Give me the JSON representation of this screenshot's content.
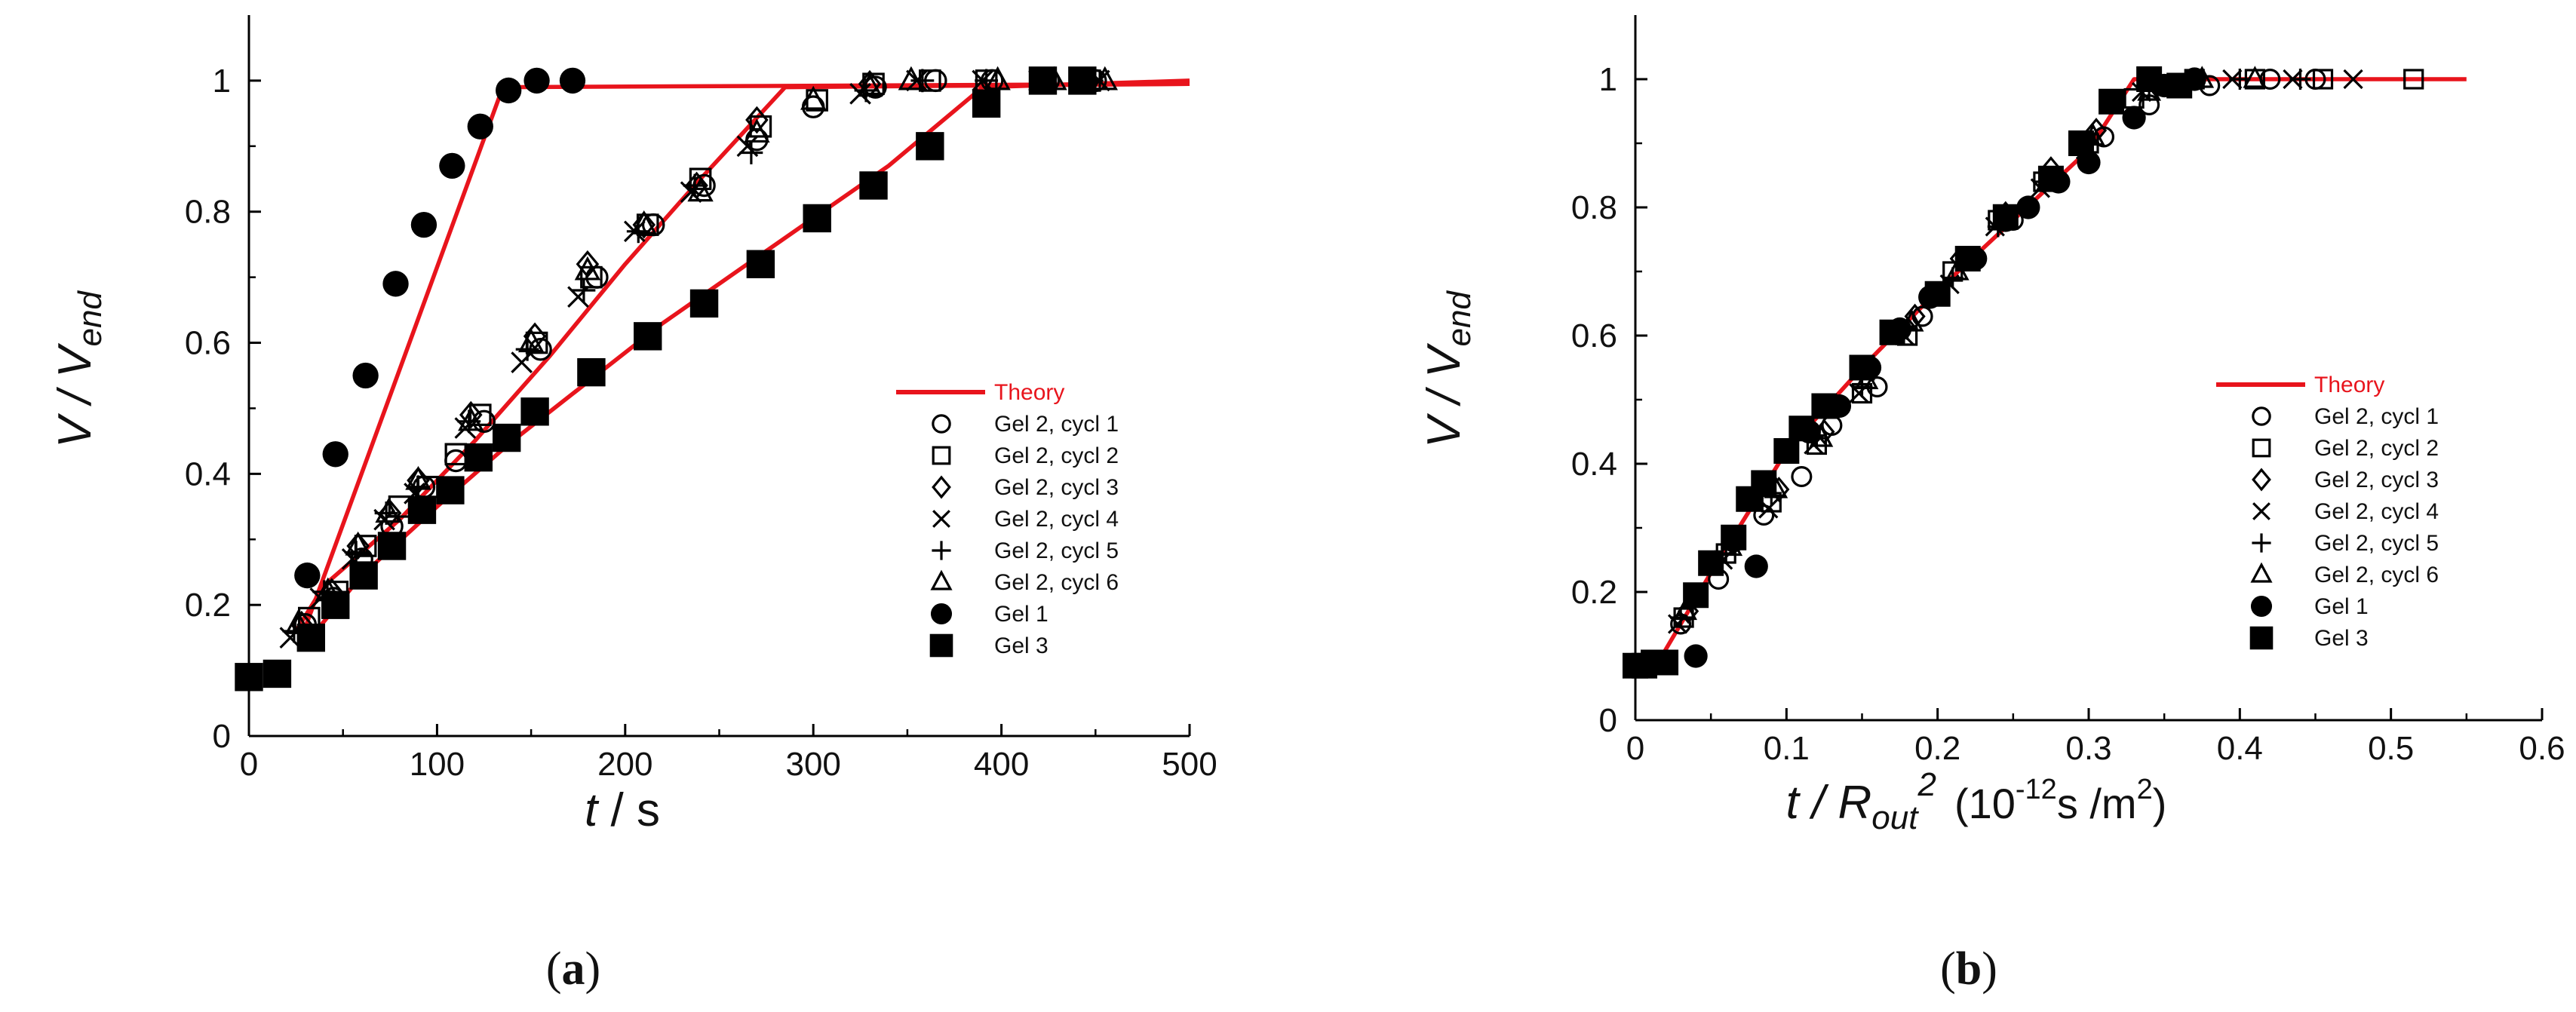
{
  "colors": {
    "theory": "#e8141c",
    "marker": "#000000",
    "axis": "#000000"
  },
  "chart_data": [
    {
      "type": "scatter",
      "panel": "a",
      "caption_letter": "a",
      "xlabel_var": "t",
      "xlabel_rest": " / s",
      "ylabel_var": "V / V",
      "ylabel_sub": "end",
      "xlim": [
        0,
        500
      ],
      "ylim": [
        0,
        1.1
      ],
      "xticks": [
        0,
        100,
        200,
        300,
        400,
        500
      ],
      "yticks": [
        0,
        0.2,
        0.4,
        0.6,
        0.8,
        1
      ],
      "xtick_labels": [
        "0",
        "100",
        "200",
        "300",
        "400",
        "500"
      ],
      "ytick_labels": [
        "0",
        "0.2",
        "0.4",
        "0.6",
        "0.8",
        "1"
      ],
      "legend": {
        "position": "center-right",
        "entries": [
          "Theory",
          "Gel 2, cycl 1",
          "Gel 2, cycl 2",
          "Gel 2, cycl 3",
          "Gel 2, cycl 4",
          "Gel 2, cycl 5",
          "Gel 2, cycl 6",
          "Gel 1",
          "Gel 3"
        ]
      },
      "theory_lines": [
        {
          "name": "Theory (Gel 1)",
          "x": [
            28,
            135,
            500
          ],
          "y": [
            0.15,
            0.99,
            0.995
          ]
        },
        {
          "name": "Theory (Gel 2)",
          "x": [
            25,
            40,
            80,
            120,
            160,
            200,
            240,
            285,
            500
          ],
          "y": [
            0.16,
            0.23,
            0.33,
            0.45,
            0.58,
            0.72,
            0.85,
            0.99,
            0.995
          ]
        },
        {
          "name": "Theory (Gel 3)",
          "x": [
            30,
            60,
            100,
            140,
            180,
            220,
            260,
            300,
            340,
            390,
            500
          ],
          "y": [
            0.14,
            0.245,
            0.35,
            0.45,
            0.54,
            0.63,
            0.71,
            0.79,
            0.87,
            0.99,
            1.0
          ]
        }
      ],
      "series": [
        {
          "name": "Gel 2, cycl 1",
          "marker": "circle-open",
          "x": [
            30,
            45,
            60,
            76,
            93,
            110,
            125,
            155,
            185,
            215,
            242,
            270,
            300,
            333,
            365,
            395,
            425,
            450
          ],
          "y": [
            0.17,
            0.21,
            0.27,
            0.32,
            0.38,
            0.42,
            0.48,
            0.59,
            0.7,
            0.78,
            0.84,
            0.91,
            0.96,
            0.99,
            1.0,
            1.0,
            1.0,
            1.0
          ]
        },
        {
          "name": "Gel 2, cycl 2",
          "marker": "square-open",
          "x": [
            32,
            47,
            62,
            80,
            95,
            110,
            123,
            153,
            182,
            212,
            240,
            272,
            302,
            332,
            362,
            392,
            423,
            447
          ],
          "y": [
            0.18,
            0.22,
            0.29,
            0.35,
            0.38,
            0.43,
            0.49,
            0.6,
            0.7,
            0.78,
            0.85,
            0.93,
            0.97,
            0.995,
            1.0,
            1.0,
            1.0,
            1.0
          ]
        },
        {
          "name": "Gel 2, cycl 3",
          "marker": "diamond-open",
          "x": [
            28,
            44,
            58,
            75,
            90,
            118,
            152,
            180,
            210,
            238,
            270,
            330
          ],
          "y": [
            0.17,
            0.22,
            0.29,
            0.34,
            0.39,
            0.49,
            0.61,
            0.72,
            0.78,
            0.84,
            0.94,
            0.995
          ]
        },
        {
          "name": "Gel 2, cycl 4",
          "marker": "x",
          "x": [
            22,
            38,
            55,
            72,
            88,
            115,
            145,
            175,
            205,
            235,
            265,
            325,
            355,
            390,
            420,
            452
          ],
          "y": [
            0.15,
            0.21,
            0.27,
            0.33,
            0.37,
            0.47,
            0.57,
            0.67,
            0.77,
            0.83,
            0.9,
            0.98,
            1.0,
            1.0,
            1.0,
            1.0
          ]
        },
        {
          "name": "Gel 2, cycl 5",
          "marker": "plus",
          "x": [
            24,
            40,
            57,
            73,
            90,
            117,
            148,
            178,
            207,
            237,
            267,
            328,
            358,
            392,
            422,
            448
          ],
          "y": [
            0.16,
            0.22,
            0.28,
            0.34,
            0.38,
            0.48,
            0.59,
            0.68,
            0.77,
            0.84,
            0.89,
            0.985,
            1.0,
            1.0,
            1.0,
            1.0
          ]
        },
        {
          "name": "Gel 2, cycl 6",
          "marker": "triangle-open",
          "x": [
            26,
            42,
            58,
            74,
            90,
            118,
            150,
            180,
            210,
            240,
            270,
            300,
            330,
            352,
            398,
            428,
            455
          ],
          "y": [
            0.17,
            0.22,
            0.29,
            0.34,
            0.39,
            0.48,
            0.6,
            0.71,
            0.78,
            0.83,
            0.92,
            0.97,
            0.99,
            1.0,
            1.0,
            1.0,
            1.0
          ]
        },
        {
          "name": "Gel 1",
          "marker": "circle-filled",
          "x": [
            31,
            46,
            62,
            78,
            93,
            108,
            123,
            138,
            153,
            172
          ],
          "y": [
            0.245,
            0.43,
            0.55,
            0.69,
            0.78,
            0.87,
            0.93,
            0.985,
            1.0,
            1.0
          ]
        },
        {
          "name": "Gel 3",
          "marker": "square-filled",
          "x": [
            0,
            15,
            33,
            46,
            61,
            76,
            92,
            107,
            122,
            137,
            152,
            182,
            212,
            242,
            272,
            302,
            332,
            362,
            392,
            422,
            443
          ],
          "y": [
            0.09,
            0.095,
            0.15,
            0.2,
            0.245,
            0.29,
            0.345,
            0.375,
            0.425,
            0.455,
            0.495,
            0.555,
            0.61,
            0.66,
            0.72,
            0.79,
            0.84,
            0.9,
            0.965,
            1.0,
            1.0
          ]
        }
      ]
    },
    {
      "type": "scatter",
      "panel": "b",
      "caption_letter": "b",
      "xlabel_var": "t / R",
      "xlabel_sub": "out",
      "xlabel_sup": "2",
      "xlabel_unit_pre": "(10",
      "xlabel_unit_exp": "-12",
      "xlabel_unit_mid": "s /m",
      "xlabel_unit_exp2": "2",
      "xlabel_unit_post": ")",
      "ylabel_var": "V / V",
      "ylabel_sub": "end",
      "xlim": [
        0,
        0.6
      ],
      "ylim": [
        0,
        1.1
      ],
      "xticks": [
        0,
        0.1,
        0.2,
        0.3,
        0.4,
        0.5,
        0.6
      ],
      "yticks": [
        0,
        0.2,
        0.4,
        0.6,
        0.8,
        1
      ],
      "xtick_labels": [
        "0",
        "0.1",
        "0.2",
        "0.3",
        "0.4",
        "0.5",
        "0.6"
      ],
      "ytick_labels": [
        "0",
        "0.2",
        "0.4",
        "0.6",
        "0.8",
        "1"
      ],
      "legend": {
        "position": "center-right",
        "entries": [
          "Theory",
          "Gel 2, cycl 1",
          "Gel 2, cycl 2",
          "Gel 2, cycl 3",
          "Gel 2, cycl 4",
          "Gel 2, cycl 5",
          "Gel 2, cycl 6",
          "Gel 1",
          "Gel 3"
        ]
      },
      "theory_lines": [
        {
          "name": "Theory",
          "x": [
            0,
            0.015,
            0.05,
            0.1,
            0.15,
            0.2,
            0.25,
            0.3,
            0.33,
            0.55
          ],
          "y": [
            0.085,
            0.09,
            0.23,
            0.42,
            0.55,
            0.67,
            0.78,
            0.89,
            1.0,
            1.0
          ]
        }
      ],
      "series": [
        {
          "name": "Gel 2, cycl 1",
          "marker": "circle-open",
          "x": [
            0.03,
            0.055,
            0.085,
            0.11,
            0.13,
            0.16,
            0.19,
            0.22,
            0.25,
            0.28,
            0.31,
            0.34,
            0.38,
            0.42,
            0.45
          ],
          "y": [
            0.15,
            0.22,
            0.32,
            0.38,
            0.46,
            0.52,
            0.63,
            0.72,
            0.78,
            0.84,
            0.91,
            0.96,
            0.99,
            1.0,
            1.0
          ]
        },
        {
          "name": "Gel 2, cycl 2",
          "marker": "square-open",
          "x": [
            0.032,
            0.06,
            0.09,
            0.12,
            0.15,
            0.18,
            0.21,
            0.24,
            0.27,
            0.3,
            0.33,
            0.37,
            0.41,
            0.455,
            0.515
          ],
          "y": [
            0.16,
            0.26,
            0.34,
            0.43,
            0.51,
            0.6,
            0.7,
            0.78,
            0.84,
            0.9,
            0.97,
            1.0,
            1.0,
            1.0,
            1.0
          ]
        },
        {
          "name": "Gel 2, cycl 3",
          "marker": "diamond-open",
          "x": [
            0.035,
            0.065,
            0.095,
            0.125,
            0.155,
            0.185,
            0.215,
            0.245,
            0.275,
            0.305,
            0.345
          ],
          "y": [
            0.17,
            0.28,
            0.36,
            0.45,
            0.55,
            0.63,
            0.72,
            0.79,
            0.86,
            0.92,
            0.99
          ]
        },
        {
          "name": "Gel 2, cycl 4",
          "marker": "x",
          "x": [
            0.028,
            0.058,
            0.088,
            0.118,
            0.148,
            0.178,
            0.208,
            0.238,
            0.268,
            0.298,
            0.335,
            0.36,
            0.395,
            0.435,
            0.475
          ],
          "y": [
            0.15,
            0.25,
            0.33,
            0.43,
            0.51,
            0.6,
            0.68,
            0.77,
            0.83,
            0.89,
            0.98,
            0.99,
            1.0,
            1.0,
            1.0
          ]
        },
        {
          "name": "Gel 2, cycl 5",
          "marker": "plus",
          "x": [
            0.03,
            0.06,
            0.09,
            0.12,
            0.15,
            0.18,
            0.21,
            0.24,
            0.27,
            0.3,
            0.34,
            0.37,
            0.4,
            0.44
          ],
          "y": [
            0.16,
            0.26,
            0.35,
            0.44,
            0.52,
            0.61,
            0.69,
            0.77,
            0.84,
            0.9,
            0.985,
            1.0,
            1.0,
            1.0
          ]
        },
        {
          "name": "Gel 2, cycl 6",
          "marker": "triangle-open",
          "x": [
            0.033,
            0.063,
            0.093,
            0.123,
            0.153,
            0.183,
            0.213,
            0.243,
            0.273,
            0.303,
            0.34,
            0.375,
            0.41
          ],
          "y": [
            0.17,
            0.27,
            0.36,
            0.44,
            0.53,
            0.62,
            0.7,
            0.78,
            0.84,
            0.91,
            0.98,
            1.0,
            1.0
          ]
        },
        {
          "name": "Gel 1",
          "marker": "circle-filled",
          "x": [
            0.015,
            0.04,
            0.065,
            0.08,
            0.1,
            0.115,
            0.135,
            0.155,
            0.175,
            0.195,
            0.225,
            0.245,
            0.26,
            0.28,
            0.3,
            0.33,
            0.35,
            0.37
          ],
          "y": [
            0.09,
            0.1,
            0.28,
            0.24,
            0.42,
            0.45,
            0.49,
            0.55,
            0.61,
            0.66,
            0.72,
            0.78,
            0.8,
            0.84,
            0.87,
            0.94,
            0.99,
            1.0
          ]
        },
        {
          "name": "Gel 3",
          "marker": "square-filled",
          "x": [
            0,
            0.006,
            0.012,
            0.02,
            0.04,
            0.05,
            0.065,
            0.075,
            0.085,
            0.1,
            0.11,
            0.125,
            0.15,
            0.17,
            0.2,
            0.22,
            0.245,
            0.275,
            0.295,
            0.315,
            0.34,
            0.36
          ],
          "y": [
            0.085,
            0.085,
            0.09,
            0.09,
            0.195,
            0.245,
            0.285,
            0.345,
            0.37,
            0.42,
            0.455,
            0.49,
            0.55,
            0.605,
            0.665,
            0.72,
            0.785,
            0.845,
            0.9,
            0.965,
            1.0,
            0.99
          ]
        }
      ]
    }
  ]
}
